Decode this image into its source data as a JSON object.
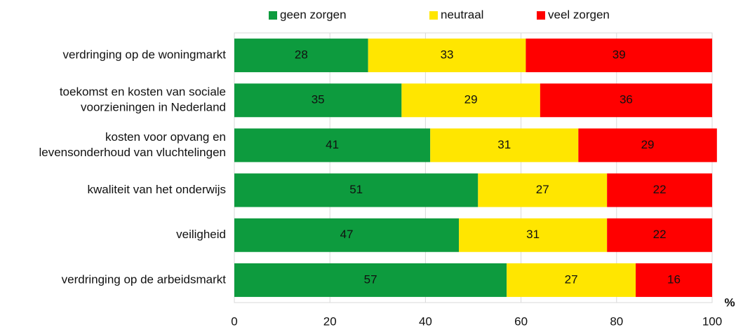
{
  "chart_data": {
    "type": "stacked-barh",
    "xlabel": "%",
    "categories": [
      "verdringing op de woningmarkt",
      [
        "toekomst en kosten van sociale",
        "voorzieningen in Nederland"
      ],
      [
        "kosten voor opvang en",
        "levensonderhoud van vluchtelingen"
      ],
      "kwaliteit van het onderwijs",
      "veiligheid",
      "verdringing op de arbeidsmarkt"
    ],
    "series": [
      {
        "name": "geen zorgen",
        "color": "#0d9b3e",
        "values": [
          28,
          35,
          41,
          51,
          47,
          57
        ]
      },
      {
        "name": "neutraal",
        "color": "#ffe600",
        "values": [
          33,
          29,
          31,
          27,
          31,
          27
        ]
      },
      {
        "name": "veel zorgen",
        "color": "#ff0000",
        "values": [
          39,
          36,
          29,
          22,
          22,
          16
        ]
      }
    ],
    "xlim": [
      0,
      100
    ],
    "xticks": [
      0,
      20,
      40,
      60,
      80,
      100
    ],
    "legend": "top"
  }
}
